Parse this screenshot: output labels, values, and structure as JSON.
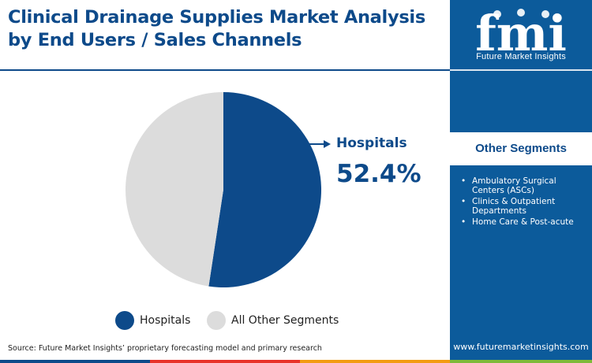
{
  "title": "Clinical Drainage Supplies Market Analysis by End Users / Sales Channels",
  "brand": {
    "logo_text": "fmi",
    "name": "Future Market Insights",
    "website": "www.futuremarketinsights.com"
  },
  "chart_data": {
    "type": "pie",
    "slices": [
      {
        "label": "Hospitals",
        "value": 52.4,
        "color": "#0d4a8a"
      },
      {
        "label": "All Other Segments",
        "value": 47.6,
        "color": "#dcdcdc"
      }
    ],
    "callout": {
      "label": "Hospitals",
      "value": "52.4%"
    },
    "legend": [
      "Hospitals",
      "All Other Segments"
    ],
    "legend_position": "bottom"
  },
  "other_segments": {
    "heading": "Other Segments",
    "items": [
      "Ambulatory Surgical Centers (ASCs)",
      "Clinics & Outpatient Departments",
      "Home Care & Post-acute"
    ]
  },
  "source": "Source: Future Market Insights’ proprietary forecasting model and primary research",
  "colors": {
    "primary": "#0d4a8a",
    "side_panel": "#0c5b9b",
    "other_segments": "#dcdcdc",
    "stripes": [
      "#0d4a8a",
      "#e8332a",
      "#f39c12",
      "#7dba3a"
    ]
  }
}
